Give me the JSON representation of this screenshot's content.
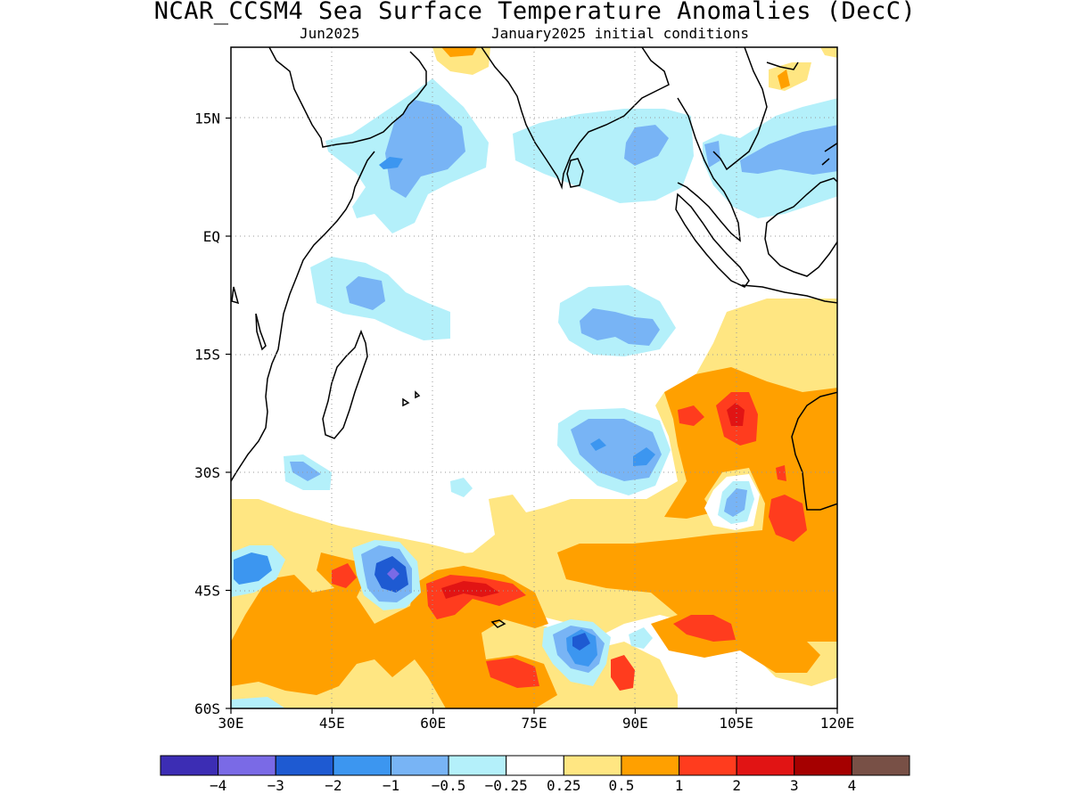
{
  "header": {
    "title": "NCAR_CCSM4 Sea Surface Temperature Anomalies (DecC)",
    "valid_month": "Jun2025",
    "init_conditions": "January2025 initial conditions"
  },
  "map": {
    "lon_range": [
      30,
      120
    ],
    "lat_range": [
      -60,
      24
    ],
    "lat_ticks": [
      {
        "value": 15,
        "label": "15N"
      },
      {
        "value": 0,
        "label": "EQ"
      },
      {
        "value": -15,
        "label": "15S"
      },
      {
        "value": -30,
        "label": "30S"
      },
      {
        "value": -45,
        "label": "45S"
      },
      {
        "value": -60,
        "label": "60S"
      }
    ],
    "lon_ticks": [
      {
        "value": 30,
        "label": "30E"
      },
      {
        "value": 45,
        "label": "45E"
      },
      {
        "value": 60,
        "label": "60E"
      },
      {
        "value": 75,
        "label": "75E"
      },
      {
        "value": 90,
        "label": "90E"
      },
      {
        "value": 105,
        "label": "105E"
      },
      {
        "value": 120,
        "label": "120E"
      }
    ],
    "gridlines": "dotted"
  },
  "colorbar": {
    "colors": [
      "#3c2db4",
      "#7a6ae6",
      "#1e5ad2",
      "#3c96f0",
      "#78b4f5",
      "#b4f0fa",
      "#ffffff",
      "#ffe682",
      "#ffa000",
      "#ff3c1e",
      "#e11414",
      "#a50000",
      "#785046"
    ],
    "labels": [
      "−4",
      "−3",
      "−2",
      "−1",
      "−0.5",
      "−0.25",
      "0.25",
      "0.5",
      "1",
      "2",
      "3",
      "4"
    ]
  }
}
